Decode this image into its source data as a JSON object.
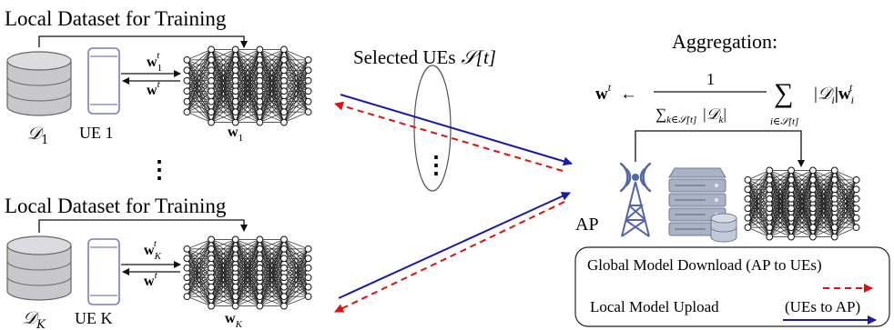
{
  "ue_top": {
    "dataset_title": "Local Dataset for Training",
    "dataset_symbol": "𝒟",
    "dataset_sub": "1",
    "ue_label": "UE 1",
    "weight_upload_base": "w",
    "weight_upload_sub": "1",
    "weight_upload_sup": "t",
    "weight_download_base": "w",
    "weight_download_sup": "t",
    "model_weight_base": "w",
    "model_weight_sub": "1"
  },
  "ellipsis_dots": "⋮",
  "ue_bottom": {
    "dataset_title": "Local Dataset for Training",
    "dataset_symbol": "𝒟",
    "dataset_sub": "K",
    "ue_label": "UE K",
    "weight_upload_base": "w",
    "weight_upload_sub": "K",
    "weight_upload_sup": "t",
    "weight_download_base": "w",
    "weight_download_sup": "t",
    "model_weight_base": "w",
    "model_weight_sub": "K"
  },
  "selected_ues": {
    "label": "Selected UEs",
    "symbol": "𝒮[t]",
    "dots": "⋮"
  },
  "aggregation": {
    "title": "Aggregation:",
    "lhs": "w",
    "lhs_sup": "t",
    "arrow": "←",
    "numerator": "1",
    "denom_sum": "∑",
    "denom_sub": "k∈𝒮[t]",
    "denom_term": "|𝒟",
    "denom_term_sub": "k",
    "denom_term_end": "|",
    "sum": "∑",
    "sum_sub": "i∈𝒮[t]",
    "term": "|𝒟",
    "term_sub": "i",
    "term_mid": "|w",
    "term_w_sub": "i",
    "term_w_sup": "t"
  },
  "ap_label": "AP",
  "legend": {
    "download_label": "Global Model Download (AP to UEs)",
    "upload_label": "Local Model Upload",
    "upload_direction": "(UEs to AP)"
  },
  "colors": {
    "upload": "#1a1aa8",
    "download": "#dd1111",
    "database_fill": "#c8c8cc",
    "phone_stroke": "#7a7fae",
    "tower": "#5566a8"
  }
}
